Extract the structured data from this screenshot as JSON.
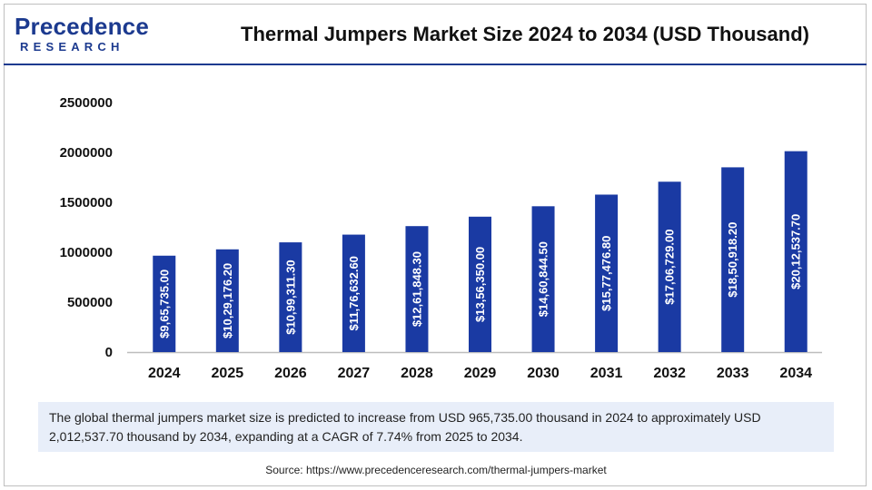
{
  "brand": {
    "logo_top": "Precedence",
    "logo_bottom": "RESEARCH"
  },
  "colors": {
    "bar": "#1a3aa3",
    "brand": "#1c3a8f",
    "caption_bg": "#e8eef9"
  },
  "chart_data": {
    "type": "bar",
    "title": "Thermal Jumpers Market Size 2024 to 2034 (USD Thousand)",
    "categories": [
      "2024",
      "2025",
      "2026",
      "2027",
      "2028",
      "2029",
      "2030",
      "2031",
      "2032",
      "2033",
      "2034"
    ],
    "values": [
      965735.0,
      1029176.2,
      1099311.3,
      1176632.6,
      1261848.3,
      1356350.0,
      1460844.5,
      1577476.8,
      1706729.0,
      1850918.2,
      2012537.7
    ],
    "data_labels": [
      "$9,65,735.00",
      "$10,29,176.20",
      "$10,99,311.30",
      "$11,76,632.60",
      "$12,61,848.30",
      "$13,56,350.00",
      "$14,60,844.50",
      "$15,77,476.80",
      "$17,06,729.00",
      "$18,50,918.20",
      "$20,12,537.70"
    ],
    "yticks": [
      "0",
      "500000",
      "1000000",
      "1500000",
      "2000000",
      "2500000"
    ],
    "ylim": [
      0,
      2500000
    ],
    "grid": false,
    "legend": "none",
    "xlabel": "",
    "ylabel": ""
  },
  "caption": "The global thermal jumpers market size is predicted to increase from USD 965,735.00 thousand in 2024 to approximately USD 2,012,537.70 thousand by 2034, expanding at a CAGR of 7.74% from 2025 to 2034.",
  "source": "Source: https://www.precedenceresearch.com/thermal-jumpers-market"
}
